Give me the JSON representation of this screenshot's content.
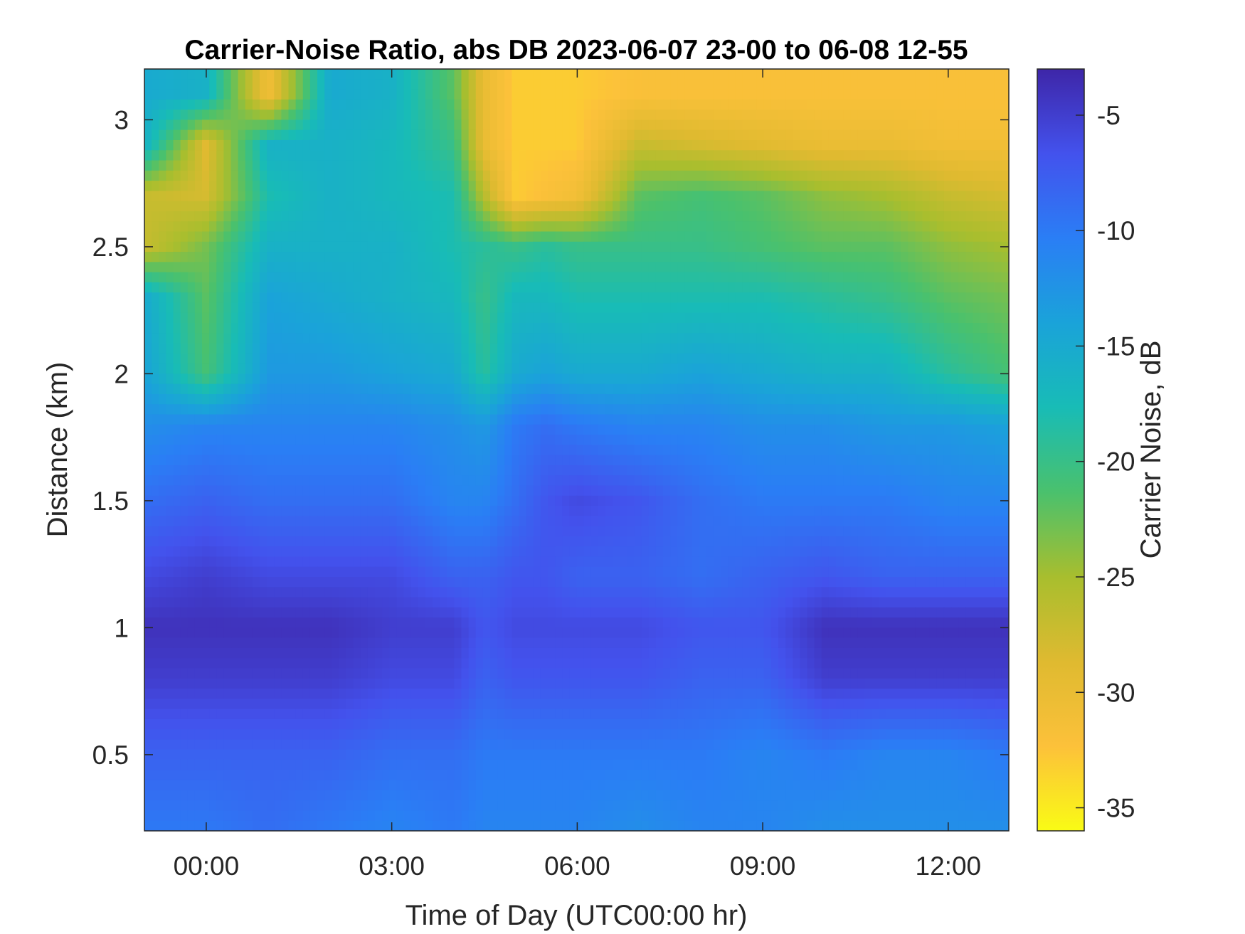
{
  "chart_data": {
    "type": "heatmap",
    "title": "Carrier-Noise Ratio, abs DB 2023-06-07 23-00 to 06-08 12-55",
    "xlabel": "Time of Day (UTC00:00 hr)",
    "ylabel": "Distance (km)",
    "colorbar_label": "Carrier Noise, dB",
    "xlim": [
      -1.0,
      12.98
    ],
    "ylim": [
      0.2,
      3.2
    ],
    "clim": [
      -36,
      -3
    ],
    "x_ticks": [
      0,
      3,
      6,
      9,
      12
    ],
    "x_tick_labels": [
      "00:00",
      "03:00",
      "06:00",
      "09:00",
      "12:00"
    ],
    "y_ticks": [
      0.5,
      1,
      1.5,
      2,
      2.5,
      3
    ],
    "y_tick_labels": [
      "0.5",
      "1",
      "1.5",
      "2",
      "2.5",
      "3"
    ],
    "colorbar_ticks": [
      -5,
      -10,
      -15,
      -20,
      -25,
      -30,
      -35
    ],
    "colorbar_tick_labels": [
      "-5",
      "-10",
      "-15",
      "-20",
      "-25",
      "-30",
      "-35"
    ],
    "colormap": "parula (reversed)",
    "colormap_stops": [
      "#3e26a8",
      "#4352ed",
      "#2a7ef5",
      "#1aa3d9",
      "#18bcb6",
      "#4ac16d",
      "#a8be2e",
      "#dfba30",
      "#fcc13a",
      "#f9fb15"
    ],
    "grid": false,
    "times": [
      -1,
      0,
      1,
      2,
      3,
      4,
      4.5,
      5,
      5.5,
      6,
      7,
      8,
      9,
      10,
      11,
      12,
      12.98
    ],
    "ranges_km": [
      0.2,
      0.5,
      0.8,
      1.0,
      1.2,
      1.5,
      1.8,
      2.0,
      2.3,
      2.5,
      2.7,
      2.9,
      3.1
    ],
    "values": [
      [
        -10,
        -10,
        -9,
        -10,
        -11,
        -10,
        -11,
        -11,
        -11,
        -11,
        -12,
        -11,
        -11,
        -12,
        -12,
        -12,
        -12
      ],
      [
        -8,
        -8,
        -8,
        -8,
        -9,
        -9,
        -10,
        -10,
        -10,
        -10,
        -10,
        -10,
        -11,
        -10,
        -11,
        -11,
        -10
      ],
      [
        -5,
        -5,
        -5,
        -5,
        -6,
        -6,
        -8,
        -7,
        -7,
        -7,
        -7,
        -8,
        -8,
        -5,
        -5,
        -5,
        -5
      ],
      [
        -4,
        -4,
        -4,
        -4,
        -5,
        -5,
        -7,
        -6,
        -6,
        -6,
        -6,
        -7,
        -7,
        -4,
        -4,
        -4,
        -4
      ],
      [
        -6,
        -5,
        -6,
        -6,
        -6,
        -8,
        -8,
        -7,
        -7,
        -8,
        -8,
        -9,
        -8,
        -7,
        -8,
        -8,
        -8
      ],
      [
        -9,
        -8,
        -9,
        -9,
        -9,
        -11,
        -11,
        -9,
        -7,
        -6,
        -7,
        -9,
        -10,
        -10,
        -10,
        -11,
        -11
      ],
      [
        -12,
        -11,
        -11,
        -11,
        -11,
        -12,
        -13,
        -10,
        -9,
        -10,
        -11,
        -11,
        -12,
        -12,
        -13,
        -13,
        -14
      ],
      [
        -14,
        -21,
        -13,
        -13,
        -14,
        -15,
        -19,
        -15,
        -14,
        -15,
        -15,
        -14,
        -15,
        -16,
        -16,
        -19,
        -21
      ],
      [
        -15,
        -22,
        -14,
        -15,
        -16,
        -17,
        -20,
        -17,
        -17,
        -18,
        -18,
        -18,
        -18,
        -19,
        -20,
        -22,
        -23
      ],
      [
        -27,
        -23,
        -16,
        -16,
        -16,
        -18,
        -19,
        -20,
        -19,
        -20,
        -20,
        -20,
        -21,
        -22,
        -22,
        -24,
        -25
      ],
      [
        -27,
        -28,
        -18,
        -16,
        -17,
        -18,
        -26,
        -33,
        -32,
        -31,
        -22,
        -21,
        -22,
        -24,
        -25,
        -27,
        -28
      ],
      [
        -16,
        -29,
        -16,
        -16,
        -17,
        -20,
        -30,
        -33,
        -33,
        -33,
        -27,
        -28,
        -29,
        -30,
        -30,
        -31,
        -31
      ],
      [
        -15,
        -16,
        -31,
        -15,
        -16,
        -22,
        -30,
        -33,
        -33,
        -33,
        -32,
        -32,
        -32,
        -32,
        -32,
        -32,
        -32
      ]
    ]
  }
}
